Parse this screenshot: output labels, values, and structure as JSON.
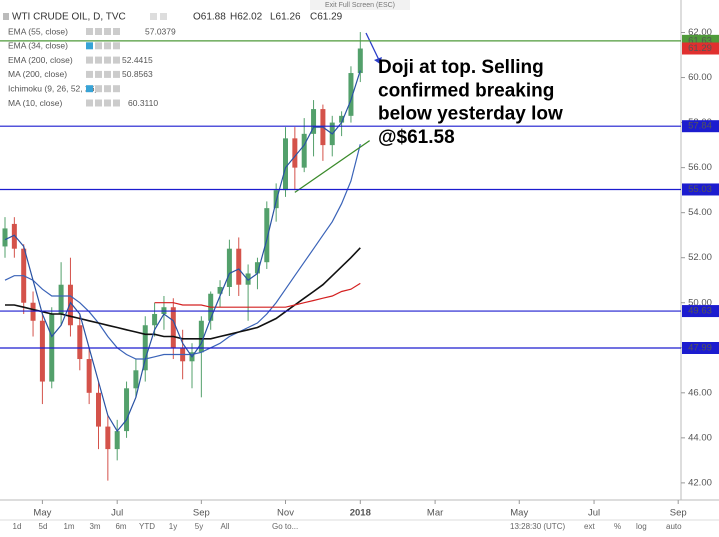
{
  "exit_fullscreen": "Exit Full Screen (ESC)",
  "toolbar": {
    "ranges": [
      "1d",
      "5d",
      "1m",
      "3m",
      "6m",
      "YTD",
      "1y",
      "5y",
      "All"
    ],
    "goto": "Go to...",
    "time": "13:28:30 (UTC)",
    "options": [
      "ext",
      "%",
      "log",
      "auto"
    ]
  },
  "chart_data": {
    "type": "candlestick",
    "title": "WTI CRUDE OIL, D, TVC",
    "ohlc_labels": [
      {
        "value": 61.88,
        "label": "O61.88"
      },
      {
        "value": 62.02,
        "label": "H62.02"
      },
      {
        "value": 61.26,
        "label": "L61.26"
      },
      {
        "value": 61.29,
        "label": "C61.29"
      }
    ],
    "categories": [
      null,
      null,
      null,
      null,
      "May",
      null,
      null,
      null,
      null,
      null,
      null,
      null,
      "Jul",
      null,
      null,
      null,
      null,
      null,
      null,
      null,
      null,
      "Sep",
      null,
      null,
      null,
      null,
      null,
      null,
      null,
      null,
      "Nov",
      null,
      null,
      null,
      null,
      null,
      null,
      null,
      "2018",
      null,
      null,
      null,
      null,
      null,
      null,
      null,
      "Mar",
      null,
      null,
      null,
      null,
      null,
      null,
      null,
      null,
      "May",
      null,
      null,
      null,
      null,
      null,
      null,
      null,
      "Jul",
      null,
      null,
      null,
      null,
      null,
      null,
      null,
      null,
      "Sep"
    ],
    "open": [
      52.5,
      53.5,
      52.4,
      50,
      49.2,
      46.5,
      49.5,
      50.8,
      49,
      47.5,
      46,
      44.5,
      43.5,
      44.3,
      46.2,
      47,
      49,
      49.5,
      49.8,
      48,
      47.4,
      47.8,
      49.2,
      50.4,
      50.7,
      52.4,
      50.8,
      51.3,
      51.8,
      54.2,
      55,
      57.3,
      56,
      57.5,
      58.6,
      57,
      58,
      58.3,
      60.2,
      null,
      null,
      null,
      null,
      null,
      null,
      null,
      null,
      null,
      null,
      null,
      null,
      null,
      null,
      null,
      null,
      null,
      null,
      null,
      null,
      null,
      null,
      null,
      null,
      null,
      null,
      null,
      null,
      null,
      null,
      null,
      null,
      null,
      null
    ],
    "high": [
      53.8,
      53.8,
      52.6,
      50.5,
      49.6,
      49.8,
      51.8,
      52,
      49.5,
      48,
      46.5,
      45,
      44.8,
      46.5,
      47.5,
      49.4,
      50,
      50.3,
      50.2,
      48.8,
      48.2,
      49.4,
      50.5,
      51,
      52.8,
      52.9,
      51.7,
      52,
      54.5,
      55.3,
      57.8,
      57.8,
      58.2,
      59,
      58.8,
      58.3,
      58.5,
      60.5,
      62.02,
      null,
      null,
      null,
      null,
      null,
      null,
      null,
      null,
      null,
      null,
      null,
      null,
      null,
      null,
      null,
      null,
      null,
      null,
      null,
      null,
      null,
      null,
      null,
      null,
      null,
      null,
      null,
      null,
      null,
      null,
      null,
      null,
      null,
      null
    ],
    "low": [
      52,
      52,
      49.5,
      48.5,
      45.5,
      46.2,
      49,
      48.5,
      47,
      45.5,
      43.5,
      42.1,
      43,
      44,
      45.8,
      46.5,
      48.5,
      48.8,
      47.5,
      46.6,
      46.2,
      45.8,
      48.8,
      49.8,
      50.3,
      50.3,
      49.2,
      50.6,
      51.5,
      53.6,
      54.7,
      55,
      55.8,
      56.5,
      56.3,
      56.5,
      57.4,
      58,
      59.8,
      null,
      null,
      null,
      null,
      null,
      null,
      null,
      null,
      null,
      null,
      null,
      null,
      null,
      null,
      null,
      null,
      null,
      null,
      null,
      null,
      null,
      null,
      null,
      null,
      null,
      null,
      null,
      null,
      null,
      null,
      null,
      null,
      null,
      null
    ],
    "close": [
      53.3,
      52.4,
      50,
      49.2,
      46.5,
      49.5,
      50.8,
      49,
      47.5,
      46,
      44.5,
      43.5,
      44.3,
      46.2,
      47,
      49,
      49.5,
      49.8,
      48,
      47.4,
      47.8,
      49.2,
      50.4,
      50.7,
      52.4,
      50.8,
      51.3,
      51.8,
      54.2,
      55,
      57.3,
      56,
      57.5,
      58.6,
      57,
      58,
      58.3,
      60.2,
      61.29,
      null,
      null,
      null,
      null,
      null,
      null,
      null,
      null,
      null,
      null,
      null,
      null,
      null,
      null,
      null,
      null,
      null,
      null,
      null,
      null,
      null,
      null,
      null,
      null,
      null,
      null,
      null,
      null,
      null,
      null,
      null,
      null,
      null,
      null
    ],
    "up_color": "#53a06b",
    "down_color": "#d4524a",
    "indicators": [
      {
        "name": "EMA (55, close)",
        "value": 57.0379,
        "color": "#3a63b8",
        "values": [
          51,
          51.2,
          51.2,
          51,
          50.6,
          50.3,
          50.3,
          50.3,
          50,
          49.6,
          49.1,
          48.5,
          48,
          47.7,
          47.5,
          47.5,
          47.6,
          47.7,
          47.7,
          47.7,
          47.7,
          47.8,
          48,
          48.2,
          48.5,
          48.7,
          48.9,
          49.1,
          49.5,
          50,
          50.6,
          51.2,
          51.8,
          52.4,
          53,
          53.6,
          54.4,
          55.4,
          57.04,
          null,
          null,
          null,
          null,
          null,
          null,
          null,
          null,
          null,
          null,
          null,
          null,
          null,
          null,
          null,
          null,
          null,
          null,
          null,
          null,
          null,
          null,
          null,
          null,
          null,
          null,
          null,
          null,
          null,
          null,
          null,
          null,
          null,
          null
        ]
      },
      {
        "name": "EMA (34, close)",
        "color": "#6f8fd0"
      },
      {
        "name": "EMA (200, close)",
        "value": 52.4415,
        "color": "#111111",
        "values": [
          49.9,
          49.9,
          49.8,
          49.7,
          49.6,
          49.5,
          49.5,
          49.4,
          49.3,
          49.2,
          49.1,
          49,
          48.9,
          48.8,
          48.7,
          48.6,
          48.6,
          48.5,
          48.5,
          48.4,
          48.4,
          48.4,
          48.4,
          48.5,
          48.6,
          48.7,
          48.8,
          48.9,
          49.1,
          49.3,
          49.6,
          49.9,
          50.2,
          50.5,
          50.8,
          51.2,
          51.6,
          52,
          52.44,
          null,
          null,
          null,
          null,
          null,
          null,
          null,
          null,
          null,
          null,
          null,
          null,
          null,
          null,
          null,
          null,
          null,
          null,
          null,
          null,
          null,
          null,
          null,
          null,
          null,
          null,
          null,
          null,
          null,
          null,
          null,
          null,
          null,
          null
        ]
      },
      {
        "name": "MA (200, close)",
        "value": 50.8563,
        "color": "#d42020",
        "values": [
          null,
          null,
          null,
          null,
          null,
          null,
          null,
          null,
          null,
          null,
          null,
          null,
          null,
          null,
          null,
          null,
          50,
          50,
          50,
          49.9,
          49.9,
          49.9,
          49.8,
          49.8,
          49.8,
          49.8,
          49.8,
          49.8,
          49.8,
          49.8,
          49.8,
          49.9,
          50,
          50.1,
          50.2,
          50.3,
          50.5,
          50.6,
          50.86,
          null,
          null,
          null,
          null,
          null,
          null,
          null,
          null,
          null,
          null,
          null,
          null,
          null,
          null,
          null,
          null,
          null,
          null,
          null,
          null,
          null,
          null,
          null,
          null,
          null,
          null,
          null,
          null,
          null,
          null,
          null,
          null,
          null,
          null
        ]
      },
      {
        "name": "Ichimoku (9, 26, 52, 26)",
        "color": "#a0a0a0"
      },
      {
        "name": "MA (10, close)",
        "value": {
          "value": 60.311,
          "label": "60.3110"
        },
        "color": "#2952a3",
        "values": [
          52.8,
          53,
          52.5,
          51,
          49.5,
          48.5,
          49,
          50,
          49.5,
          48,
          46.5,
          45,
          44.3,
          44.8,
          45.8,
          47.5,
          48.8,
          49.5,
          49.2,
          48.2,
          47.6,
          48.2,
          49.3,
          50.3,
          51.3,
          51.5,
          51,
          51.3,
          52.8,
          54.5,
          56,
          56.5,
          57,
          57.8,
          57.8,
          57.5,
          58,
          59,
          60.31,
          null,
          null,
          null,
          null,
          null,
          null,
          null,
          null,
          null,
          null,
          null,
          null,
          null,
          null,
          null,
          null,
          null,
          null,
          null,
          null,
          null,
          null,
          null,
          null,
          null,
          null,
          null,
          null,
          null,
          null,
          null,
          null,
          null,
          null
        ]
      }
    ],
    "levels": [
      {
        "value": 61.63,
        "color": "#4f9a3a"
      },
      {
        "value": 57.84,
        "color": "#1c1ccf"
      },
      {
        "value": 55.03,
        "color": "#1c1ccf"
      },
      {
        "value": 49.63,
        "color": "#1c1ccf"
      },
      {
        "value": 47.99,
        "color": "#1c1ccf"
      }
    ],
    "last_price": {
      "value": 61.29,
      "color": "#e0302f"
    },
    "trendline": {
      "values": [
        54.9,
        57.2
      ],
      "color": "#3a8a2a"
    },
    "annotation": [
      "Doji at top. Selling",
      "confirmed breaking",
      "below yesterday low",
      "@$61.58"
    ],
    "ylim": [
      41.24,
      63.0
    ],
    "yticks": [
      {
        "value": 42,
        "label": "42.00"
      },
      {
        "value": 44,
        "label": "44.00"
      },
      {
        "value": 46,
        "label": "46.00"
      },
      {
        "value": 48,
        "label": "48.00"
      },
      {
        "value": 50,
        "label": "50.00"
      },
      {
        "value": 52,
        "label": "52.00"
      },
      {
        "value": 54,
        "label": "54.00"
      },
      {
        "value": 56,
        "label": "56.00"
      },
      {
        "value": 58,
        "label": "58.00"
      },
      {
        "value": 60,
        "label": "60.00"
      },
      {
        "value": 62,
        "label": "62.00"
      }
    ]
  }
}
